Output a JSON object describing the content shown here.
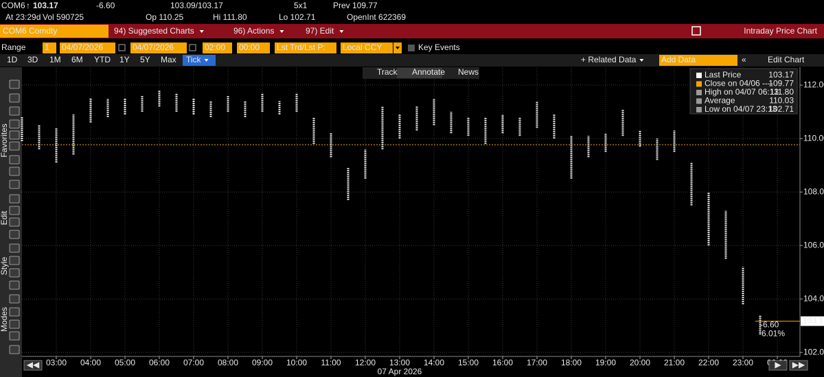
{
  "header": {
    "ticker": "COM6",
    "arrow": "↑",
    "last": "103.17",
    "change": "-6.60",
    "bid_ask": "103.09/103.17",
    "size": "5x1",
    "prev": "Prev 109.77"
  },
  "header2": {
    "at": "At 23:29d",
    "vol": "Vol 590725",
    "open": "Op 110.25",
    "high": "Hi 111.80",
    "low": "Lo 102.71",
    "open_interest": "OpenInt 622369"
  },
  "menu": {
    "security": "COM6 Comdty",
    "items": [
      "94) Suggested Charts",
      "96) Actions",
      "97) Edit"
    ],
    "title": "Intraday Price Chart"
  },
  "range_bar": {
    "label": "Range",
    "period": "1",
    "start_date": "04/07/2026",
    "end_date": "04/07/2026",
    "start_time": "02:00",
    "end_time": "00:00",
    "field": "Lst Trd/Lst P:",
    "currency": "Local CCY",
    "key_events": "Key Events"
  },
  "periods": [
    "1D",
    "3D",
    "1M",
    "6M",
    "YTD",
    "1Y",
    "5Y",
    "Max",
    "Tick"
  ],
  "toolbar": {
    "related": "+ Related Data",
    "add": "Add Data",
    "edit": "Edit Chart",
    "track": "Track",
    "annotate": "Annotate",
    "news": "News"
  },
  "side_labels": [
    "Favorites",
    "Edit",
    "Style",
    "Modes"
  ],
  "legend": [
    {
      "label": "Last Price",
      "value": "103.17",
      "color": "#ffffff"
    },
    {
      "label": "Close on 04/06 ----",
      "value": "109.77",
      "color": "#f7a600"
    },
    {
      "label": "High on 04/07 06:13",
      "value": "111.80",
      "color": "#9a9a9a"
    },
    {
      "label": "Average",
      "value": "110.03",
      "color": "#9a9a9a"
    },
    {
      "label": "Low on 04/07 23:13",
      "value": "102.71",
      "color": "#9a9a9a"
    }
  ],
  "chart": {
    "type": "range-bar",
    "color": "#d8d8d8",
    "x": [
      2.0,
      2.5,
      3.0,
      3.5,
      4.0,
      4.5,
      5.0,
      5.5,
      6.0,
      6.5,
      7.0,
      7.5,
      8.0,
      8.5,
      9.0,
      9.5,
      10.0,
      10.5,
      11.0,
      11.5,
      12.0,
      12.5,
      13.0,
      13.5,
      14.0,
      14.5,
      15.0,
      15.5,
      16.0,
      16.5,
      17.0,
      17.5,
      18.0,
      18.5,
      19.0,
      19.5,
      20.0,
      20.5,
      21.0,
      21.5,
      22.0,
      22.5,
      23.0,
      23.5
    ],
    "high": [
      110.8,
      110.5,
      110.4,
      110.9,
      111.5,
      111.5,
      111.5,
      111.6,
      111.8,
      111.7,
      111.5,
      111.4,
      111.6,
      111.4,
      111.7,
      111.4,
      111.7,
      110.8,
      110.2,
      108.9,
      109.6,
      111.2,
      110.9,
      111.2,
      111.5,
      111.0,
      110.8,
      110.8,
      110.9,
      110.8,
      111.4,
      110.9,
      110.1,
      110.1,
      110.2,
      111.1,
      110.3,
      110.0,
      110.3,
      109.1,
      108.0,
      107.3,
      105.2,
      103.4
    ],
    "low": [
      109.9,
      109.6,
      109.1,
      109.4,
      110.6,
      110.8,
      110.9,
      111.0,
      111.2,
      111.0,
      110.9,
      110.8,
      111.0,
      110.8,
      111.0,
      110.9,
      111.0,
      109.8,
      109.3,
      107.7,
      108.5,
      109.6,
      110.0,
      110.3,
      110.5,
      110.2,
      110.1,
      109.8,
      110.2,
      110.1,
      110.4,
      110.0,
      108.5,
      109.3,
      109.5,
      110.1,
      109.7,
      109.2,
      109.5,
      107.5,
      106.0,
      105.5,
      103.8,
      102.71
    ],
    "xlim": [
      2.0,
      24.66
    ],
    "ylim": [
      101.85,
      112.67
    ],
    "xticks": [
      {
        "value": 3,
        "label": "03:00"
      },
      {
        "value": 4,
        "label": "04:00"
      },
      {
        "value": 5,
        "label": "05:00"
      },
      {
        "value": 6,
        "label": "06:00"
      },
      {
        "value": 7,
        "label": "07:00"
      },
      {
        "value": 8,
        "label": "08:00"
      },
      {
        "value": 9,
        "label": "09:00"
      },
      {
        "value": 10,
        "label": "10:00"
      },
      {
        "value": 11,
        "label": "11:00"
      },
      {
        "value": 12,
        "label": "12:00"
      },
      {
        "value": 13,
        "label": "13:00"
      },
      {
        "value": 14,
        "label": "14:00"
      },
      {
        "value": 15,
        "label": "15:00"
      },
      {
        "value": 16,
        "label": "16:00"
      },
      {
        "value": 17,
        "label": "17:00"
      },
      {
        "value": 18,
        "label": "18:00"
      },
      {
        "value": 19,
        "label": "19:00"
      },
      {
        "value": 20,
        "label": "20:00"
      },
      {
        "value": 21,
        "label": "21:00"
      },
      {
        "value": 22,
        "label": "22:00"
      },
      {
        "value": 23,
        "label": "23:00"
      },
      {
        "value": 24,
        "label": "00:00"
      }
    ],
    "yticks": [
      {
        "value": 102,
        "label": "102.00"
      },
      {
        "value": 104,
        "label": "104.00"
      },
      {
        "value": 106,
        "label": "106.00"
      },
      {
        "value": 108,
        "label": "108.00"
      },
      {
        "value": 110,
        "label": "110.00"
      },
      {
        "value": 112,
        "label": "112.00"
      }
    ],
    "grid": true,
    "close_line": {
      "value": 109.77,
      "color": "#f7a600"
    },
    "last_price": {
      "value": 103.17,
      "label": "103.17"
    },
    "change_labels": [
      "-6.60",
      "-6.01%"
    ],
    "date_label": "07 Apr 2026"
  }
}
